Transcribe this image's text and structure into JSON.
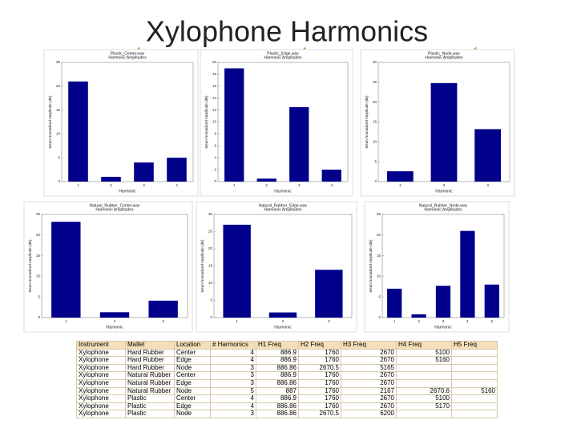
{
  "title": "Xylophone Harmonics",
  "chart_data": [
    {
      "type": "bar",
      "title": "Plastic_Center.wav",
      "subtitle": "Harmonic Amplitudes",
      "xlabel": "Harmonic",
      "ylabel": "Mean Normalized Amplitude (dB)",
      "color": "#00008b",
      "categories": [
        "1",
        "2",
        "3",
        "4"
      ],
      "values": [
        21,
        1,
        4,
        5
      ],
      "ylim": [
        0,
        25
      ],
      "yticks": [
        0,
        5,
        10,
        15,
        20,
        25
      ]
    },
    {
      "type": "bar",
      "title": "Plastic_Edge.wav",
      "subtitle": "Harmonic Amplitudes",
      "xlabel": "Harmonic",
      "ylabel": "Mean Normalized Amplitude (dB)",
      "color": "#00008b",
      "categories": [
        "1",
        "2",
        "3",
        "4"
      ],
      "values": [
        19,
        0.5,
        12.5,
        2
      ],
      "ylim": [
        0,
        20
      ],
      "yticks": [
        0,
        2,
        4,
        6,
        8,
        10,
        12,
        14,
        16,
        18,
        20
      ]
    },
    {
      "type": "bar",
      "title": "Plastic_Node.wav",
      "subtitle": "Harmonic Amplitudes",
      "xlabel": "Harmonic",
      "ylabel": "Mean Normalized Amplitude (dB)",
      "color": "#00008b",
      "categories": [
        "1",
        "2",
        "3"
      ],
      "values": [
        2.6,
        24.8,
        13.2
      ],
      "ylim": [
        0,
        30
      ],
      "yticks": [
        0,
        5,
        10,
        15,
        20,
        25,
        30
      ]
    },
    {
      "type": "bar",
      "title": "Natural_Rubber_Center.wav",
      "subtitle": "Harmonic Amplitudes",
      "xlabel": "Harmonic",
      "ylabel": "Mean Normalized Amplitude (dB)",
      "color": "#00008b",
      "categories": [
        "1",
        "2",
        "3"
      ],
      "values": [
        23.2,
        1.3,
        4.1
      ],
      "ylim": [
        0,
        25
      ],
      "yticks": [
        0,
        5,
        10,
        15,
        20,
        25
      ]
    },
    {
      "type": "bar",
      "title": "Natural_Rubber_Edge.wav",
      "subtitle": "Harmonic Amplitudes",
      "xlabel": "Harmonic",
      "ylabel": "Mean Normalized Amplitude (dB)",
      "color": "#00008b",
      "categories": [
        "1",
        "2",
        "3"
      ],
      "values": [
        27,
        1.5,
        13.9
      ],
      "ylim": [
        0,
        30
      ],
      "yticks": [
        0,
        5,
        10,
        15,
        20,
        25,
        30
      ]
    },
    {
      "type": "bar",
      "title": "Natural_Rubber_Node.wav",
      "subtitle": "Harmonic Amplitudes",
      "xlabel": "Harmonic",
      "ylabel": "Mean Normalized Amplitude (dB)",
      "color": "#00008b",
      "categories": [
        "1",
        "2",
        "3",
        "4",
        "5"
      ],
      "values": [
        7,
        0.8,
        7.7,
        21,
        8
      ],
      "ylim": [
        0,
        25
      ],
      "yticks": [
        0,
        5,
        10,
        15,
        20,
        25
      ]
    }
  ],
  "table": {
    "columns": [
      "Instrument",
      "Mallet",
      "Location",
      "# Harmonics",
      "H1 Freq",
      "H2 Freq",
      "H3 Freq",
      "H4 Freq",
      "H5 Freq"
    ],
    "rows": [
      [
        "Xylophone",
        "Hard Rubber",
        "Center",
        "4",
        "886.9",
        "1760",
        "2670",
        "5100",
        null
      ],
      [
        "Xylophone",
        "Hard Rubber",
        "Edge",
        "4",
        "886.9",
        "1760",
        "2670",
        "5160",
        null
      ],
      [
        "Xylophone",
        "Hard Rubber",
        "Node",
        "3",
        "886.86",
        "2670.5",
        "5165",
        null,
        null
      ],
      [
        "Xylophone",
        "Natural Rubber",
        "Center",
        "3",
        "886.9",
        "1760",
        "2670",
        null,
        null
      ],
      [
        "Xylophone",
        "Natural Rubber",
        "Edge",
        "3",
        "886.86",
        "1760",
        "2670",
        null,
        null
      ],
      [
        "Xylophone",
        "Natural Rubber",
        "Node",
        "5",
        "887",
        "1760",
        "2167",
        "2670.6",
        "5160"
      ],
      [
        "Xylophone",
        "Plastic",
        "Center",
        "4",
        "886.9",
        "1760",
        "2670",
        "5100",
        null
      ],
      [
        "Xylophone",
        "Plastic",
        "Edge",
        "4",
        "886.86",
        "1760",
        "2670",
        "5170",
        null
      ],
      [
        "Xylophone",
        "Plastic",
        "Node",
        "3",
        "886.86",
        "2670.5",
        "6200",
        null,
        null
      ]
    ]
  }
}
